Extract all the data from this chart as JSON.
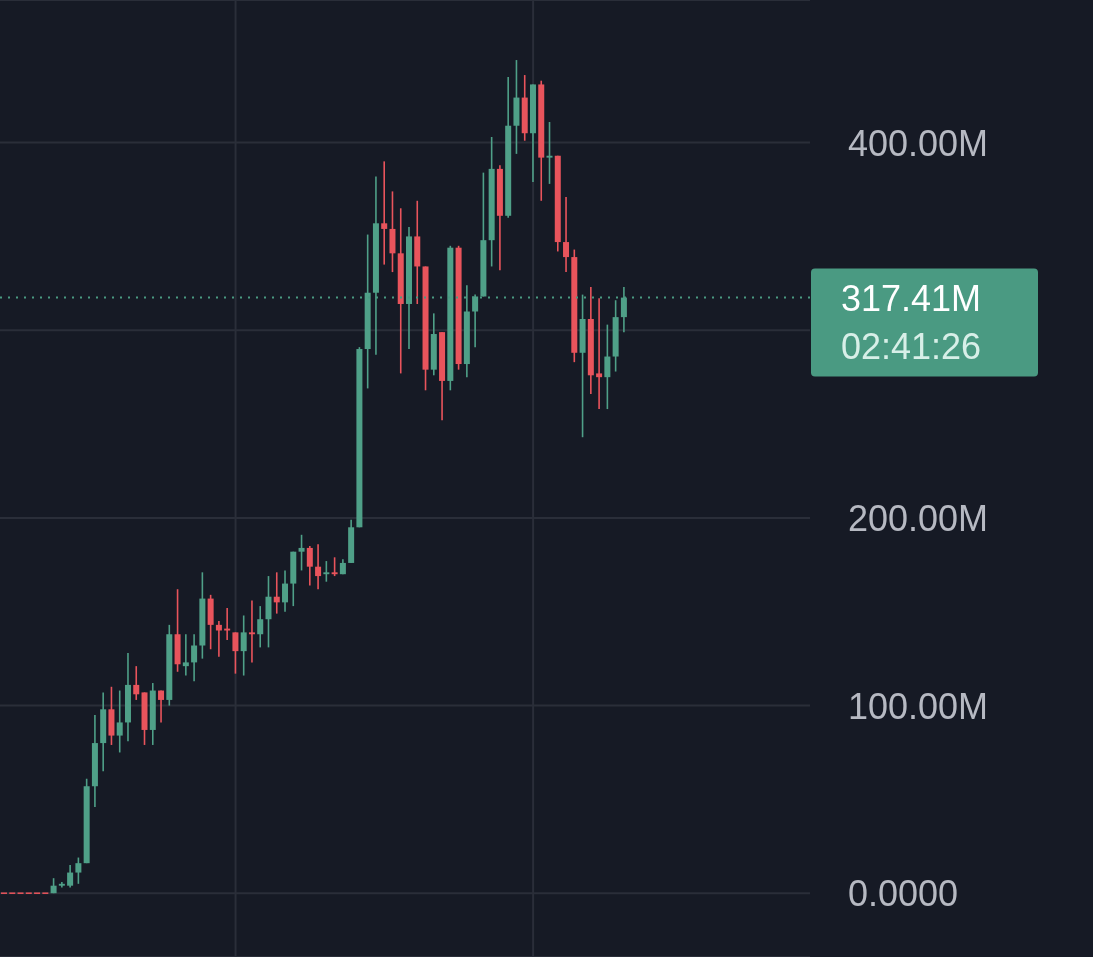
{
  "chart_data": {
    "type": "candlestick",
    "categories": [
      null,
      null,
      null,
      null,
      null,
      null,
      null,
      null,
      null,
      null,
      null,
      null,
      null,
      null,
      null,
      null,
      null,
      null,
      null,
      null,
      null,
      null,
      null,
      null,
      null,
      null,
      null,
      null,
      null,
      null,
      null,
      null,
      null,
      null,
      null,
      null,
      null,
      null,
      null,
      null,
      null,
      null,
      null,
      null,
      null,
      null,
      null,
      null,
      null,
      null,
      null,
      null,
      null,
      null,
      null,
      null,
      null,
      null,
      null,
      null,
      null,
      null,
      null,
      null,
      null,
      null,
      null,
      null,
      null,
      null,
      null,
      null,
      null,
      null,
      null,
      null,
      null,
      null,
      null,
      null,
      null,
      null,
      null,
      null,
      null,
      null,
      null,
      null,
      null,
      null,
      null,
      null,
      null,
      null,
      null,
      null,
      null,
      null
    ],
    "ohlc": [
      [
        0,
        0,
        0,
        0
      ],
      [
        0,
        0,
        0,
        0
      ],
      [
        0,
        0,
        0,
        0
      ],
      [
        0,
        0,
        0,
        0
      ],
      [
        0,
        0,
        0,
        0
      ],
      [
        0,
        0,
        0,
        0
      ],
      [
        0,
        8,
        0,
        4
      ],
      [
        4,
        6,
        3,
        5
      ],
      [
        4,
        15,
        3,
        11
      ],
      [
        11,
        19,
        5,
        16
      ],
      [
        16,
        61,
        16,
        57
      ],
      [
        57,
        95,
        46,
        80
      ],
      [
        80,
        107,
        65,
        98
      ],
      [
        98,
        110,
        79,
        84
      ],
      [
        84,
        108,
        75,
        91
      ],
      [
        91,
        128,
        81,
        111
      ],
      [
        111,
        121,
        103,
        106
      ],
      [
        107,
        107,
        79,
        87
      ],
      [
        87,
        112,
        79,
        108
      ],
      [
        108,
        108,
        91,
        103
      ],
      [
        103,
        143,
        100,
        138
      ],
      [
        138,
        162,
        118,
        122
      ],
      [
        121,
        138,
        116,
        123
      ],
      [
        123,
        138,
        113,
        132
      ],
      [
        132,
        171,
        125,
        157
      ],
      [
        157,
        159,
        130,
        143
      ],
      [
        143,
        145,
        126,
        140
      ],
      [
        141,
        152,
        135,
        140
      ],
      [
        139,
        139,
        117,
        129
      ],
      [
        129,
        148,
        116,
        139
      ],
      [
        139,
        156,
        123,
        138
      ],
      [
        138,
        153,
        131,
        146
      ],
      [
        146,
        169,
        131,
        158
      ],
      [
        158,
        171,
        149,
        155
      ],
      [
        155,
        172,
        150,
        165
      ],
      [
        165,
        182,
        153,
        182
      ],
      [
        182,
        191,
        172,
        184
      ],
      [
        184,
        185,
        164,
        174
      ],
      [
        174,
        186,
        162,
        169
      ],
      [
        170,
        177,
        166,
        171
      ],
      [
        171,
        179,
        169,
        170
      ],
      [
        170,
        178,
        170,
        176
      ],
      [
        176,
        199,
        176,
        195
      ],
      [
        195,
        291,
        195,
        290
      ],
      [
        290,
        351,
        269,
        320
      ],
      [
        320,
        382,
        287,
        357
      ],
      [
        357,
        390,
        335,
        354
      ],
      [
        354,
        374,
        331,
        341
      ],
      [
        341,
        365,
        277,
        314
      ],
      [
        314,
        355,
        290,
        350
      ],
      [
        350,
        369,
        314,
        334
      ],
      [
        334,
        334,
        268,
        279
      ],
      [
        279,
        309,
        276,
        298
      ],
      [
        299,
        299,
        252,
        273
      ],
      [
        273,
        345,
        268,
        344
      ],
      [
        344,
        345,
        279,
        282
      ],
      [
        282,
        324,
        275,
        310
      ],
      [
        310,
        319,
        291,
        318
      ],
      [
        318,
        384,
        318,
        348
      ],
      [
        348,
        403,
        334,
        386
      ],
      [
        386,
        388,
        332,
        361
      ],
      [
        361,
        435,
        360,
        409
      ],
      [
        409,
        444,
        394,
        424
      ],
      [
        424,
        436,
        401,
        405
      ],
      [
        405,
        431,
        379,
        431
      ],
      [
        431,
        433,
        369,
        392
      ],
      [
        392,
        411,
        378,
        393
      ],
      [
        393,
        393,
        342,
        347
      ],
      [
        347,
        371,
        331,
        339
      ],
      [
        339,
        343,
        283,
        288
      ],
      [
        288,
        319,
        243,
        306
      ],
      [
        306,
        323,
        266,
        276
      ],
      [
        277,
        317,
        258,
        275
      ],
      [
        275,
        303,
        258,
        286
      ],
      [
        286,
        316,
        278,
        307
      ],
      [
        307,
        323,
        299,
        317.41
      ],
      null,
      null,
      null,
      null,
      null,
      null,
      null,
      null,
      null,
      null,
      null,
      null,
      null,
      null,
      null,
      null,
      null,
      null,
      null,
      null,
      null,
      null
    ],
    "colors": [
      "#e9545c",
      "#e9545c",
      "#e9545c",
      "#e9545c",
      "#e9545c",
      "#e9545c",
      "#4fa088",
      "#4fa088",
      "#4fa088",
      "#4fa088",
      "#4fa088",
      "#4fa088",
      "#4fa088",
      "#e9545c",
      "#4fa088",
      "#4fa088",
      "#e9545c",
      "#e9545c",
      "#4fa088",
      "#e9545c",
      "#4fa088",
      "#e9545c",
      "#4fa088",
      "#4fa088",
      "#4fa088",
      "#e9545c",
      "#e9545c",
      "#e9545c",
      "#e9545c",
      "#4fa088",
      "#e9545c",
      "#4fa088",
      "#4fa088",
      "#e9545c",
      "#4fa088",
      "#4fa088",
      "#4fa088",
      "#e9545c",
      "#e9545c",
      "#4fa088",
      "#e9545c",
      "#4fa088",
      "#4fa088",
      "#4fa088",
      "#4fa088",
      "#4fa088",
      "#e9545c",
      "#e9545c",
      "#e9545c",
      "#4fa088",
      "#e9545c",
      "#e9545c",
      "#4fa088",
      "#e9545c",
      "#4fa088",
      "#e9545c",
      "#4fa088",
      "#4fa088",
      "#4fa088",
      "#4fa088",
      "#e9545c",
      "#4fa088",
      "#4fa088",
      "#e9545c",
      "#4fa088",
      "#e9545c",
      "#4fa088",
      "#e9545c",
      "#e9545c",
      "#e9545c",
      "#4fa088",
      "#e9545c",
      "#e9545c",
      "#4fa088",
      "#4fa088",
      "#4fa088",
      null,
      null,
      null,
      null,
      null,
      null,
      null,
      null,
      null,
      null,
      null,
      null,
      null,
      null,
      null,
      null,
      null,
      null,
      null,
      null,
      null,
      null
    ],
    "ylim": [
      -34,
      476
    ],
    "yticks": [
      {
        "value": 0,
        "label": "0.0000"
      },
      {
        "value": 100,
        "label": "100.00M"
      },
      {
        "value": 200,
        "label": "200.00M"
      },
      {
        "value": 300,
        "label": null
      },
      {
        "value": 400,
        "label": "400.00M"
      }
    ],
    "grid": "y",
    "ref_lines": [
      {
        "axis": "y",
        "value": 317.41,
        "label": "317.41M",
        "color": "#4a9a82",
        "line_style": "dotted"
      }
    ],
    "annotations": [
      "02:41:26"
    ]
  }
}
